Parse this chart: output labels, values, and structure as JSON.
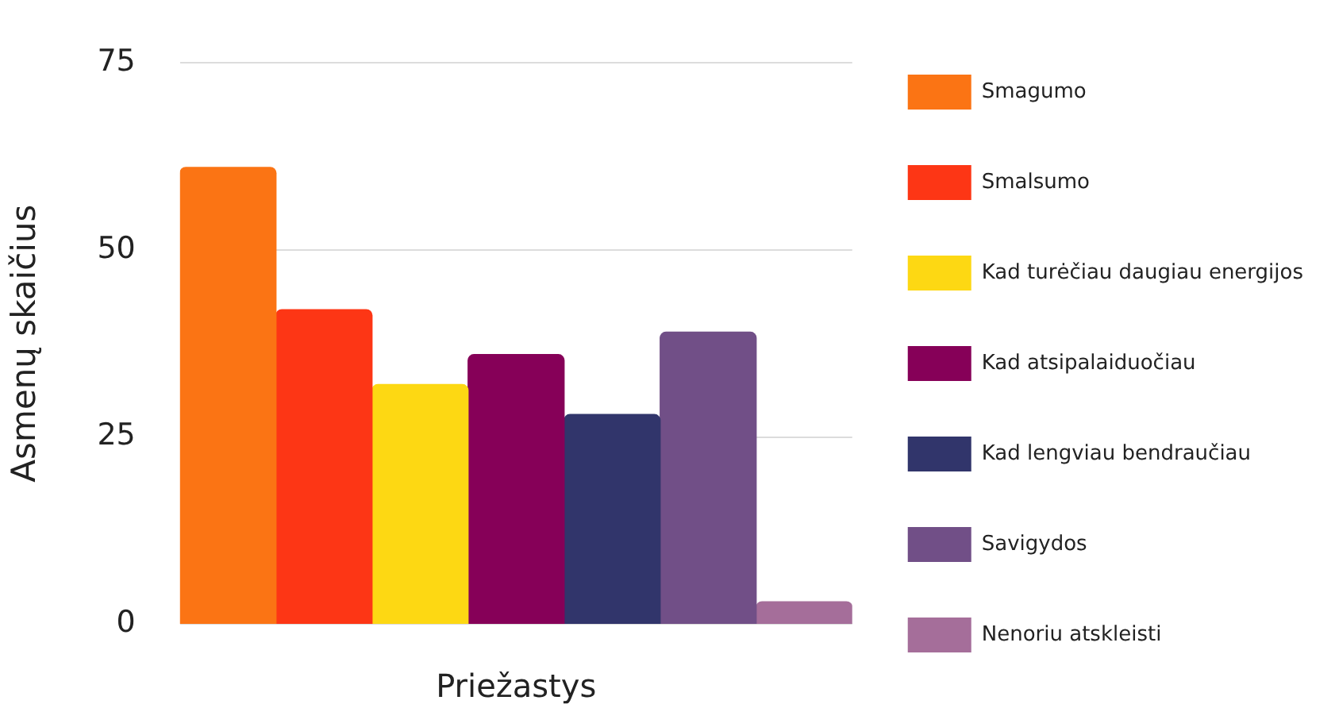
{
  "chart_data": {
    "type": "bar",
    "xlabel": "Priežastys",
    "ylabel": "Asmenų skaičius",
    "categories": [
      null
    ],
    "series": [
      {
        "name": "Smagumo",
        "color": "#fb7414",
        "values": [
          61
        ]
      },
      {
        "name": "Smalsumo",
        "color": "#fd3615",
        "values": [
          42
        ]
      },
      {
        "name": "Kad turėčiau daugiau energijos",
        "color": "#fdd813",
        "values": [
          32
        ]
      },
      {
        "name": "Kad atsipalaiduočiau",
        "color": "#860058",
        "values": [
          36
        ]
      },
      {
        "name": "Kad lengviau bendraučiau",
        "color": "#31356b",
        "values": [
          28
        ]
      },
      {
        "name": "Savigydos",
        "color": "#714f87",
        "values": [
          39
        ]
      },
      {
        "name": "Nenoriu atskleisti",
        "color": "#a56e9a",
        "values": [
          3
        ]
      }
    ],
    "ylim": [
      0,
      75
    ],
    "yticks": [
      0,
      25,
      50,
      75
    ],
    "grid": "y",
    "legend": "right"
  }
}
